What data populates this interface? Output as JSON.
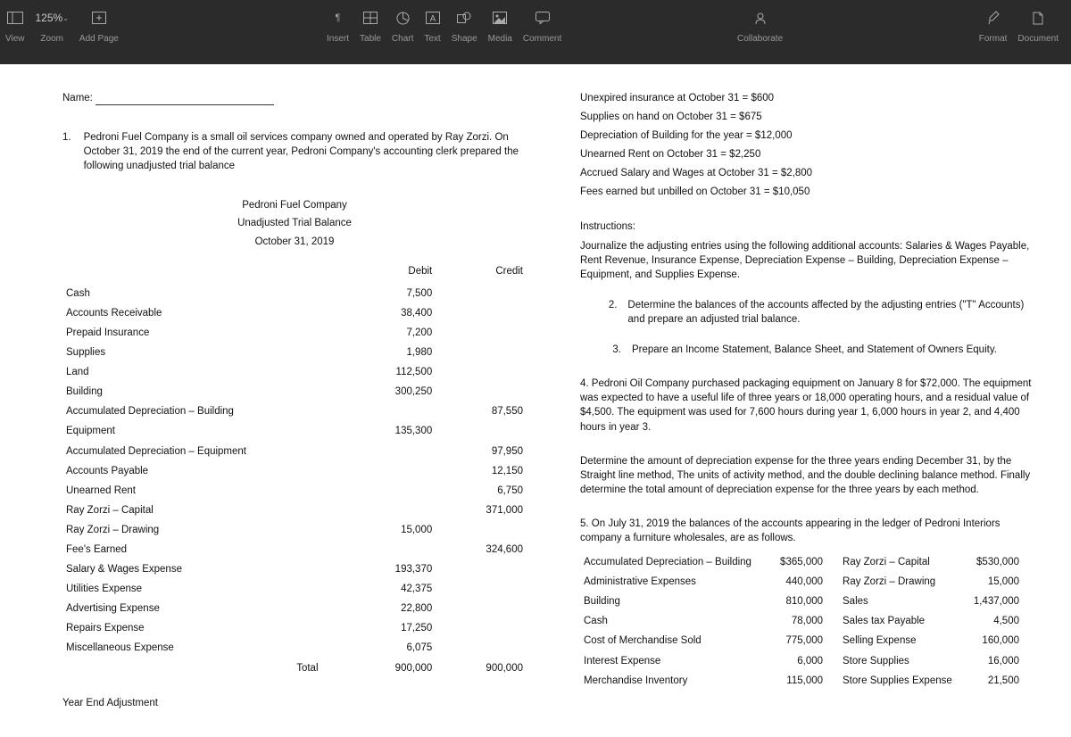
{
  "toolbar": {
    "view": "View",
    "zoom": "Zoom",
    "zoom_value": "125%",
    "addpage": "Add Page",
    "insert": "Insert",
    "table": "Table",
    "chart": "Chart",
    "text": "Text",
    "shape": "Shape",
    "media": "Media",
    "comment": "Comment",
    "collaborate": "Collaborate",
    "format": "Format",
    "document": "Document"
  },
  "doc": {
    "name_label": "Name:",
    "q1num": "1.",
    "q1text": "Pedroni Fuel Company is a small oil services company owned and operated by Ray Zorzi.  On October 31, 2019 the end of the current year, Pedroni Company's accounting clerk prepared the following unadjusted trial balance",
    "tb_company": "Pedroni Fuel Company",
    "tb_title": "Unadjusted Trial Balance",
    "tb_date": "October 31, 2019",
    "hdr_debit": "Debit",
    "hdr_credit": "Credit",
    "rows": [
      {
        "a": "Cash",
        "d": "7,500",
        "c": ""
      },
      {
        "a": "Accounts Receivable",
        "d": "38,400",
        "c": ""
      },
      {
        "a": "Prepaid Insurance",
        "d": "7,200",
        "c": ""
      },
      {
        "a": "Supplies",
        "d": "1,980",
        "c": ""
      },
      {
        "a": "Land",
        "d": "112,500",
        "c": ""
      },
      {
        "a": "Building",
        "d": "300,250",
        "c": ""
      },
      {
        "a": "Accumulated Depreciation – Building",
        "d": "",
        "c": "87,550"
      },
      {
        "a": "Equipment",
        "d": "135,300",
        "c": ""
      },
      {
        "a": "Accumulated Depreciation – Equipment",
        "d": "",
        "c": "97,950"
      },
      {
        "a": "Accounts Payable",
        "d": "",
        "c": "12,150"
      },
      {
        "a": "Unearned Rent",
        "d": "",
        "c": "6,750"
      },
      {
        "a": "Ray Zorzi – Capital",
        "d": "",
        "c": "371,000"
      },
      {
        "a": "Ray Zorzi – Drawing",
        "d": "15,000",
        "c": ""
      },
      {
        "a": "Fee's Earned",
        "d": "",
        "c": "324,600"
      },
      {
        "a": "Salary & Wages Expense",
        "d": "193,370",
        "c": ""
      },
      {
        "a": "Utilities Expense",
        "d": "42,375",
        "c": ""
      },
      {
        "a": "Advertising Expense",
        "d": "22,800",
        "c": ""
      },
      {
        "a": "Repairs Expense",
        "d": "17,250",
        "c": ""
      },
      {
        "a": "Miscellaneous Expense",
        "d": "6,075",
        "c": ""
      }
    ],
    "total_label": "Total",
    "total_d": "900,000",
    "total_c": "900,000",
    "yearend": "Year End Adjustment",
    "info": [
      "Unexpired insurance at October 31 = $600",
      "Supplies on hand on October 31    = $675",
      "Depreciation of Building for the year = $12,000",
      "Unearned Rent on October 31      = $2,250",
      "Accrued Salary and Wages at October 31 = $2,800",
      "Fees earned but unbilled on October 31 = $10,050"
    ],
    "instr_hdr": "Instructions:",
    "instr_p": "Journalize the adjusting entries using the following additional accounts:  Salaries & Wages Payable, Rent Revenue, Insurance Expense, Depreciation Expense – Building, Depreciation Expense – Equipment, and Supplies Expense.",
    "q2n": "2.",
    "q2": "Determine the balances of the accounts affected by the adjusting entries (\"T\" Accounts) and prepare an adjusted trial balance.",
    "q3n": "3.",
    "q3": "Prepare an Income Statement, Balance Sheet, and Statement of Owners Equity.",
    "q4": "4.  Pedroni Oil Company purchased packaging equipment on January 8 for $72,000.  The equipment was expected to have a useful life of three years or 18,000 operating hours, and a residual value of $4,500.  The equipment was used for 7,600 hours during year 1, 6,000 hours in year 2, and 4,400 hours in year 3.",
    "q4b": "Determine the amount of depreciation expense for the three years ending December 31, by the Straight line method, The units of activity method, and the double declining balance method.  Finally determine the total amount of depreciation expense for the three years by each method.",
    "q5": "5.  On July 31, 2019 the balances of the accounts appearing in the ledger of Pedroni Interiors company a furniture wholesales, are as follows.",
    "ledger": [
      {
        "l": "Accumulated Depreciation – Building",
        "la": "$365,000",
        "r": "Ray Zorzi – Capital",
        "ra": "$530,000"
      },
      {
        "l": "Administrative Expenses",
        "la": "440,000",
        "r": "Ray Zorzi – Drawing",
        "ra": "15,000"
      },
      {
        "l": "Building",
        "la": "810,000",
        "r": "Sales",
        "ra": "1,437,000"
      },
      {
        "l": "Cash",
        "la": "78,000",
        "r": "Sales tax Payable",
        "ra": "4,500"
      },
      {
        "l": "Cost of Merchandise Sold",
        "la": "775,000",
        "r": "Selling Expense",
        "ra": "160,000"
      },
      {
        "l": "Interest Expense",
        "la": "6,000",
        "r": "Store Supplies",
        "ra": "16,000"
      },
      {
        "l": "Merchandise Inventory",
        "la": "115,000",
        "r": "Store Supplies Expense",
        "ra": "21,500"
      }
    ]
  }
}
